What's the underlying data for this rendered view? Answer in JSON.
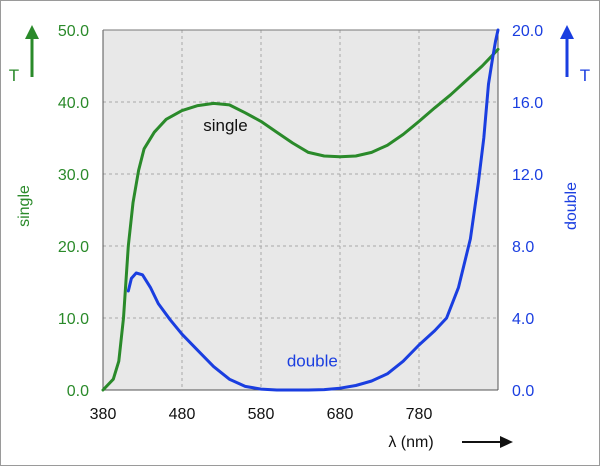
{
  "chart_data": {
    "type": "line",
    "x_axis": {
      "label": "λ (nm)",
      "ticks": [
        380,
        480,
        580,
        680,
        780
      ],
      "range": [
        380,
        880
      ]
    },
    "y_axis_left": {
      "label": "single",
      "unit_label": "T",
      "ticks": [
        "0.0",
        "10.0",
        "20.0",
        "30.0",
        "40.0",
        "50.0"
      ],
      "range": [
        0,
        50
      ],
      "color": "#2a8a2a"
    },
    "y_axis_right": {
      "label": "double",
      "unit_label": "T",
      "ticks": [
        "0.0",
        "4.0",
        "8.0",
        "12.0",
        "16.0",
        "20.0"
      ],
      "range": [
        0,
        20
      ],
      "color": "#1a3ee0"
    },
    "grid": true,
    "series": [
      {
        "name": "single",
        "axis": "left",
        "color": "#2a8a2a",
        "points": [
          [
            380,
            0.0
          ],
          [
            393,
            1.5
          ],
          [
            400,
            4.0
          ],
          [
            406,
            10.0
          ],
          [
            412,
            20.0
          ],
          [
            418,
            26.0
          ],
          [
            425,
            30.5
          ],
          [
            432,
            33.5
          ],
          [
            445,
            35.8
          ],
          [
            460,
            37.6
          ],
          [
            480,
            38.8
          ],
          [
            500,
            39.5
          ],
          [
            520,
            39.8
          ],
          [
            540,
            39.6
          ],
          [
            560,
            38.5
          ],
          [
            580,
            37.3
          ],
          [
            600,
            35.8
          ],
          [
            620,
            34.3
          ],
          [
            640,
            33.0
          ],
          [
            660,
            32.5
          ],
          [
            680,
            32.4
          ],
          [
            700,
            32.5
          ],
          [
            720,
            33.0
          ],
          [
            740,
            34.0
          ],
          [
            760,
            35.5
          ],
          [
            780,
            37.3
          ],
          [
            800,
            39.2
          ],
          [
            820,
            41.0
          ],
          [
            840,
            43.0
          ],
          [
            860,
            45.0
          ],
          [
            873,
            46.5
          ],
          [
            880,
            47.3
          ]
        ]
      },
      {
        "name": "double",
        "axis": "right",
        "color": "#1a3ee0",
        "points": [
          [
            412,
            5.5
          ],
          [
            416,
            6.2
          ],
          [
            422,
            6.5
          ],
          [
            430,
            6.4
          ],
          [
            440,
            5.7
          ],
          [
            450,
            4.8
          ],
          [
            465,
            3.9
          ],
          [
            480,
            3.1
          ],
          [
            500,
            2.2
          ],
          [
            520,
            1.3
          ],
          [
            540,
            0.6
          ],
          [
            560,
            0.2
          ],
          [
            580,
            0.05
          ],
          [
            600,
            0.0
          ],
          [
            620,
            0.0
          ],
          [
            640,
            0.0
          ],
          [
            660,
            0.02
          ],
          [
            680,
            0.1
          ],
          [
            700,
            0.25
          ],
          [
            720,
            0.5
          ],
          [
            740,
            0.9
          ],
          [
            760,
            1.6
          ],
          [
            780,
            2.5
          ],
          [
            800,
            3.3
          ],
          [
            815,
            4.0
          ],
          [
            830,
            5.7
          ],
          [
            845,
            8.4
          ],
          [
            855,
            11.5
          ],
          [
            862,
            14.0
          ],
          [
            868,
            17.0
          ],
          [
            873,
            18.4
          ],
          [
            877,
            19.4
          ],
          [
            880,
            20.0
          ]
        ]
      }
    ],
    "annotations": [
      {
        "text": "single",
        "x": 535,
        "y": 36.0,
        "axis": "left",
        "color": "#111111"
      },
      {
        "text": "double",
        "x": 645,
        "y": 1.3,
        "axis": "right",
        "color": "#1a3ee0"
      }
    ],
    "arrow_direction": "right"
  }
}
